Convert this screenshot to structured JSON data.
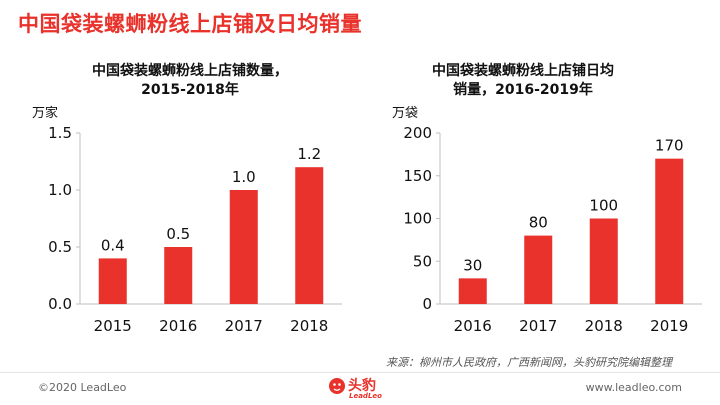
{
  "page": {
    "title": "中国袋装螺蛳粉线上店铺及日均销量",
    "source": "来源：柳州市人民政府，广西新闻网，头豹研究院编辑整理",
    "copyright": "©2020 LeadLeo",
    "website": "www.leadleo.com",
    "logo_name": "头豹",
    "logo_sub": "LeadLeo"
  },
  "colors": {
    "accent": "#e8322b",
    "bar": "#e8322b"
  },
  "chart_data": [
    {
      "type": "bar",
      "title_line1": "中国袋装螺蛳粉线上店铺数量，",
      "title_line2": "2015-2018年",
      "unit": "万家",
      "categories": [
        "2015",
        "2016",
        "2017",
        "2018"
      ],
      "values": [
        0.4,
        0.5,
        1.0,
        1.2
      ],
      "value_labels": [
        "0.4",
        "0.5",
        "1.0",
        "1.2"
      ],
      "ylim": [
        0,
        1.5
      ],
      "yticks": [
        0,
        0.5,
        1.0,
        1.5
      ],
      "ytick_labels": [
        "0.0",
        "0.5",
        "1.0",
        "1.5"
      ],
      "grid": false,
      "bar_color": "#e8322b"
    },
    {
      "type": "bar",
      "title_line1": "中国袋装螺蛳粉线上店铺日均",
      "title_line2": "销量，2016-2019年",
      "unit": "万袋",
      "categories": [
        "2016",
        "2017",
        "2018",
        "2019"
      ],
      "values": [
        30,
        80,
        100,
        170
      ],
      "value_labels": [
        "30",
        "80",
        "100",
        "170"
      ],
      "ylim": [
        0,
        200
      ],
      "yticks": [
        0,
        50,
        100,
        150,
        200
      ],
      "ytick_labels": [
        "0",
        "50",
        "100",
        "150",
        "200"
      ],
      "grid": false,
      "bar_color": "#e8322b"
    }
  ]
}
